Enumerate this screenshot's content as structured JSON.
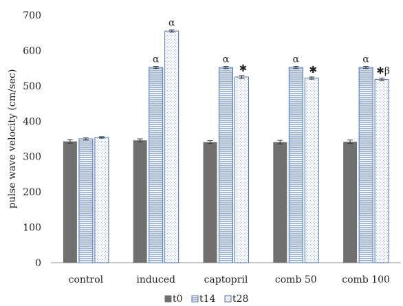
{
  "chart_data": {
    "type": "bar",
    "ylabel": "pulse wave velocity (cm/sec)",
    "ylim": [
      0,
      700
    ],
    "yticks": [
      0,
      100,
      200,
      300,
      400,
      500,
      600,
      700
    ],
    "grid": false,
    "legend_position": "bottom",
    "categories": [
      "control",
      "induced",
      "captopril",
      "comb 50",
      "comb 100"
    ],
    "series": [
      {
        "name": "t0",
        "pattern": "solid",
        "color": "#707070",
        "values": [
          343,
          346,
          341,
          341,
          342
        ],
        "errors": [
          5,
          4,
          4,
          5,
          5
        ]
      },
      {
        "name": "t14",
        "pattern": "horizontal-lines",
        "color": "#4472c4",
        "values": [
          350,
          552,
          552,
          552,
          552
        ],
        "errors": [
          3,
          3,
          3,
          3,
          3
        ]
      },
      {
        "name": "t28",
        "pattern": "dots",
        "color": "#4472c4",
        "values": [
          354,
          655,
          525,
          522,
          518
        ],
        "errors": [
          2,
          3,
          4,
          3,
          4
        ]
      }
    ],
    "annotations": [
      {
        "category": "induced",
        "series": "t14",
        "text": "α"
      },
      {
        "category": "induced",
        "series": "t28",
        "text": "α"
      },
      {
        "category": "captopril",
        "series": "t14",
        "text": "α"
      },
      {
        "category": "captopril",
        "series": "t28",
        "text": "✱"
      },
      {
        "category": "comb 50",
        "series": "t14",
        "text": "α"
      },
      {
        "category": "comb 50",
        "series": "t28",
        "text": "✱"
      },
      {
        "category": "comb 100",
        "series": "t14",
        "text": "α"
      },
      {
        "category": "comb 100",
        "series": "t28",
        "text": "✱β"
      }
    ]
  }
}
